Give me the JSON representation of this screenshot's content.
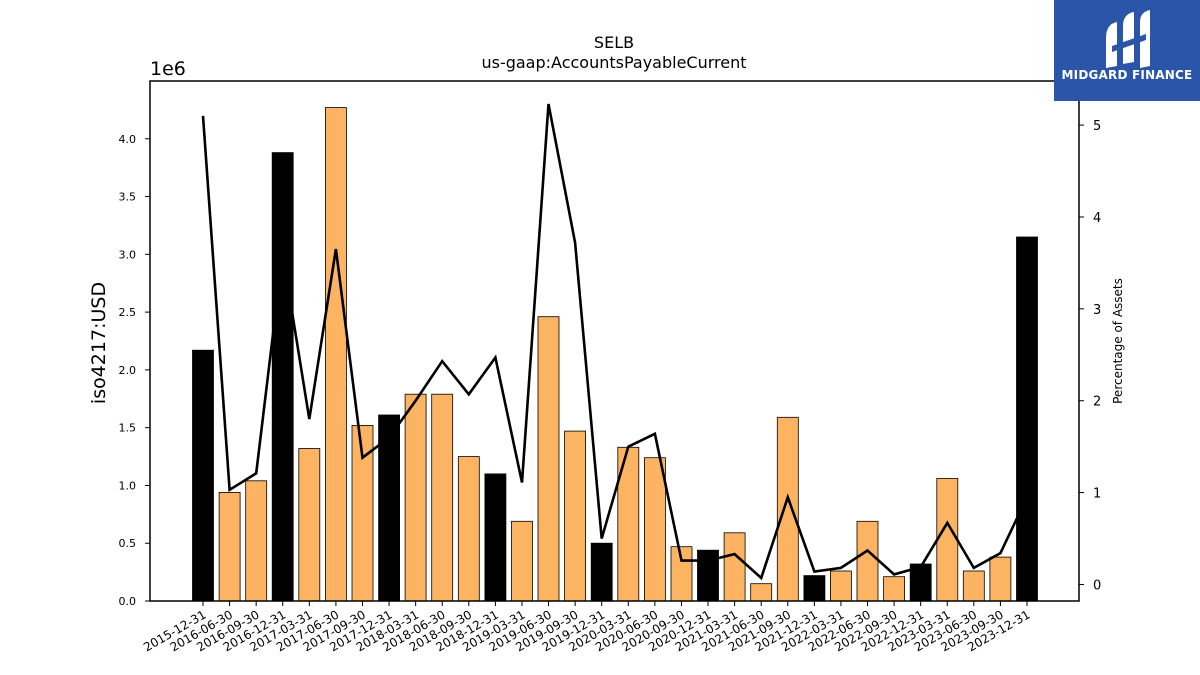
{
  "logo": {
    "text": "MIDGARD FINANCE"
  },
  "chart_data": {
    "type": "bar",
    "title": "SELB",
    "subtitle": "us-gaap:AccountsPayableCurrent",
    "ylabel": "iso4217:USD",
    "y_multiplier_label": "1e6",
    "y2label": "Percentage of Assets",
    "ylim": [
      0,
      4.5
    ],
    "y2lim": [
      -0.18,
      5.48
    ],
    "y_ticks": [
      "0.0",
      "0.5",
      "1.0",
      "1.5",
      "2.0",
      "2.5",
      "3.0",
      "3.5",
      "4.0"
    ],
    "y2_ticks": [
      "0",
      "1",
      "2",
      "3",
      "4",
      "5"
    ],
    "colors": {
      "annual": "#000000",
      "quarterly": "#fdb462",
      "line": "#000000"
    },
    "categories": [
      "2015-12-31",
      "2016-06-30",
      "2016-09-30",
      "2016-12-31",
      "2017-03-31",
      "2017-06-30",
      "2017-09-30",
      "2017-12-31",
      "2018-03-31",
      "2018-06-30",
      "2018-09-30",
      "2018-12-31",
      "2019-03-31",
      "2019-06-30",
      "2019-09-30",
      "2019-12-31",
      "2020-03-31",
      "2020-06-30",
      "2020-09-30",
      "2020-12-31",
      "2021-03-31",
      "2021-06-30",
      "2021-09-30",
      "2021-12-31",
      "2022-03-31",
      "2022-06-30",
      "2022-09-30",
      "2022-12-31",
      "2023-03-31",
      "2023-06-30",
      "2023-09-30",
      "2023-12-31"
    ],
    "values": [
      2.17,
      0.94,
      1.04,
      3.88,
      1.32,
      4.27,
      1.52,
      1.61,
      1.79,
      1.79,
      1.25,
      1.1,
      0.69,
      2.46,
      1.47,
      0.5,
      1.33,
      1.24,
      0.47,
      0.44,
      0.59,
      0.15,
      1.59,
      0.22,
      0.26,
      0.69,
      0.21,
      0.32,
      1.06,
      0.26,
      0.38,
      3.15
    ],
    "annual": [
      true,
      false,
      false,
      true,
      false,
      false,
      false,
      true,
      false,
      false,
      false,
      true,
      false,
      false,
      false,
      true,
      false,
      false,
      false,
      true,
      false,
      false,
      false,
      true,
      false,
      false,
      false,
      true,
      false,
      false,
      false,
      true
    ],
    "series": [
      {
        "values": [
          5.1,
          1.03,
          1.21,
          3.6,
          1.8,
          3.65,
          1.38,
          1.6,
          2.0,
          2.43,
          2.07,
          2.47,
          1.11,
          5.23,
          3.72,
          0.5,
          1.5,
          1.64,
          0.26,
          0.26,
          0.33,
          0.07,
          0.95,
          0.14,
          0.18,
          0.37,
          0.11,
          0.19,
          0.67,
          0.18,
          0.34,
          0.95
        ]
      }
    ]
  }
}
